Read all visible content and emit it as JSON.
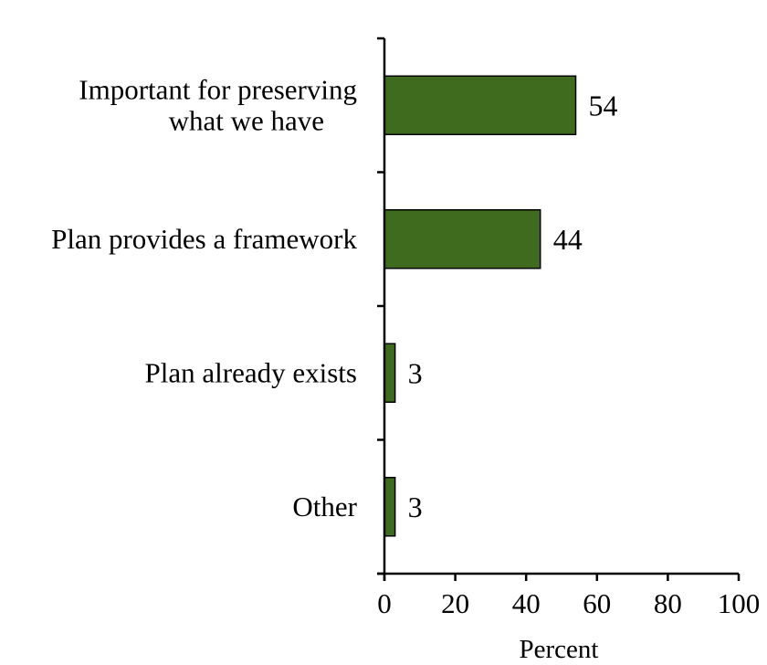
{
  "chart_data": {
    "type": "bar",
    "orientation": "horizontal",
    "categories": [
      [
        "Important for preserving",
        "what we have"
      ],
      [
        "Plan provides a framework"
      ],
      [
        "Plan already exists"
      ],
      [
        "Other"
      ]
    ],
    "values": [
      54,
      44,
      3,
      3
    ],
    "data_labels": [
      "54",
      "44",
      "3",
      "3"
    ],
    "xlabel": "Percent",
    "ylabel": "",
    "title": "",
    "xlim": [
      0,
      100
    ],
    "xticks": [
      0,
      20,
      40,
      60,
      80,
      100
    ],
    "grid": false,
    "bar_color": "#3f6b1e"
  }
}
